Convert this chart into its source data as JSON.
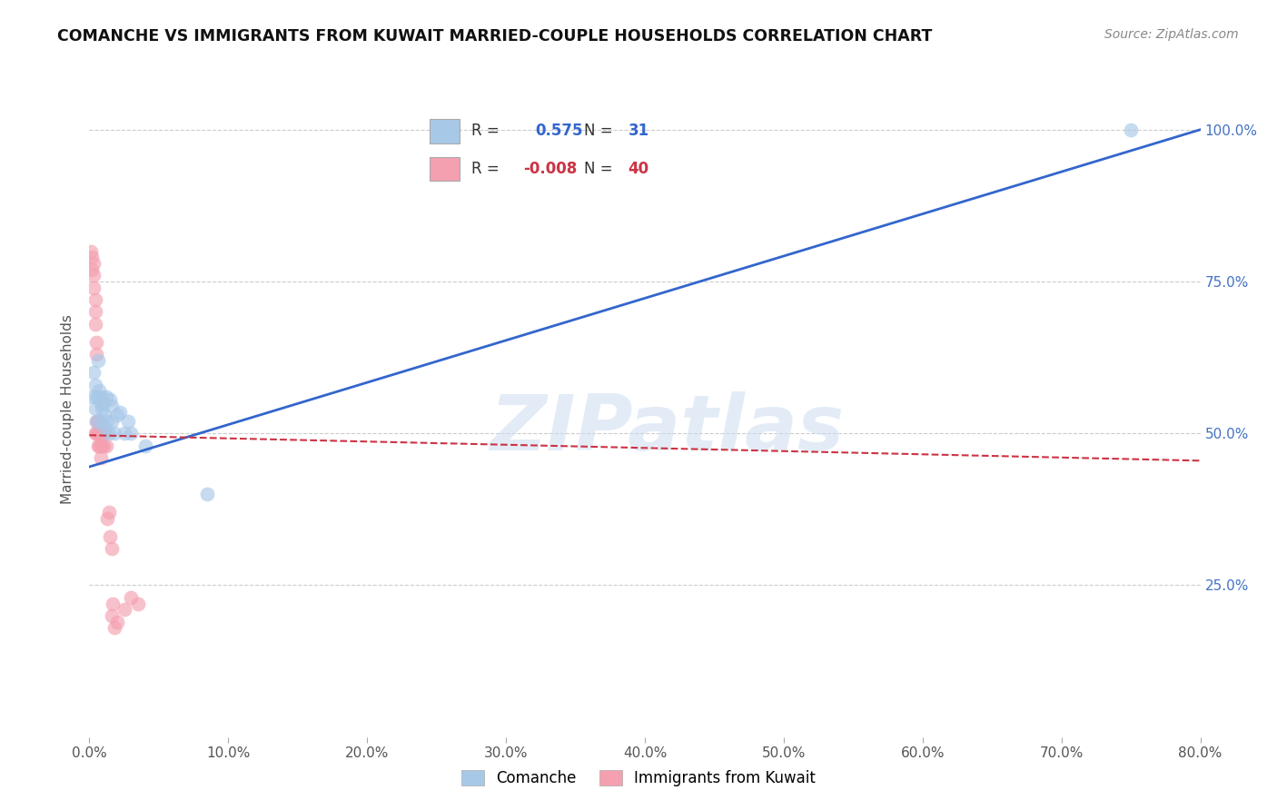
{
  "title": "COMANCHE VS IMMIGRANTS FROM KUWAIT MARRIED-COUPLE HOUSEHOLDS CORRELATION CHART",
  "source": "Source: ZipAtlas.com",
  "ylabel": "Married-couple Households",
  "watermark": "ZIPatlas",
  "comanche_R": 0.575,
  "comanche_N": 31,
  "kuwait_R": -0.008,
  "kuwait_N": 40,
  "blue_color": "#a8c8e8",
  "pink_color": "#f4a0b0",
  "blue_line_color": "#3366cc",
  "pink_line_color": "#cc3344",
  "grid_color": "#cccccc",
  "background_color": "#ffffff",
  "xlim": [
    0.0,
    0.8
  ],
  "ylim": [
    0.0,
    1.08
  ],
  "blue_line_x0": 0.0,
  "blue_line_y0": 0.445,
  "blue_line_x1": 0.8,
  "blue_line_y1": 1.0,
  "pink_line_x0": 0.0,
  "pink_line_y0": 0.497,
  "pink_line_x1": 0.8,
  "pink_line_y1": 0.455,
  "comanche_x": [
    0.002,
    0.003,
    0.004,
    0.004,
    0.005,
    0.005,
    0.006,
    0.006,
    0.007,
    0.008,
    0.008,
    0.009,
    0.009,
    0.01,
    0.011,
    0.011,
    0.012,
    0.013,
    0.014,
    0.015,
    0.016,
    0.016,
    0.018,
    0.02,
    0.022,
    0.025,
    0.028,
    0.03,
    0.04,
    0.085,
    0.75
  ],
  "comanche_y": [
    0.56,
    0.6,
    0.58,
    0.54,
    0.56,
    0.52,
    0.62,
    0.56,
    0.57,
    0.55,
    0.52,
    0.56,
    0.54,
    0.55,
    0.53,
    0.51,
    0.56,
    0.52,
    0.5,
    0.555,
    0.545,
    0.52,
    0.5,
    0.53,
    0.535,
    0.5,
    0.52,
    0.5,
    0.48,
    0.4,
    1.0
  ],
  "kuwait_x": [
    0.001,
    0.002,
    0.002,
    0.003,
    0.003,
    0.003,
    0.004,
    0.004,
    0.004,
    0.004,
    0.005,
    0.005,
    0.005,
    0.005,
    0.006,
    0.006,
    0.006,
    0.007,
    0.007,
    0.007,
    0.008,
    0.008,
    0.008,
    0.009,
    0.009,
    0.01,
    0.01,
    0.011,
    0.012,
    0.013,
    0.014,
    0.015,
    0.016,
    0.016,
    0.017,
    0.018,
    0.02,
    0.025,
    0.03,
    0.035
  ],
  "kuwait_y": [
    0.8,
    0.79,
    0.77,
    0.78,
    0.76,
    0.74,
    0.72,
    0.7,
    0.68,
    0.5,
    0.65,
    0.63,
    0.52,
    0.5,
    0.52,
    0.5,
    0.48,
    0.52,
    0.5,
    0.48,
    0.5,
    0.48,
    0.46,
    0.5,
    0.48,
    0.5,
    0.48,
    0.5,
    0.48,
    0.36,
    0.37,
    0.33,
    0.31,
    0.2,
    0.22,
    0.18,
    0.19,
    0.21,
    0.23,
    0.22
  ]
}
